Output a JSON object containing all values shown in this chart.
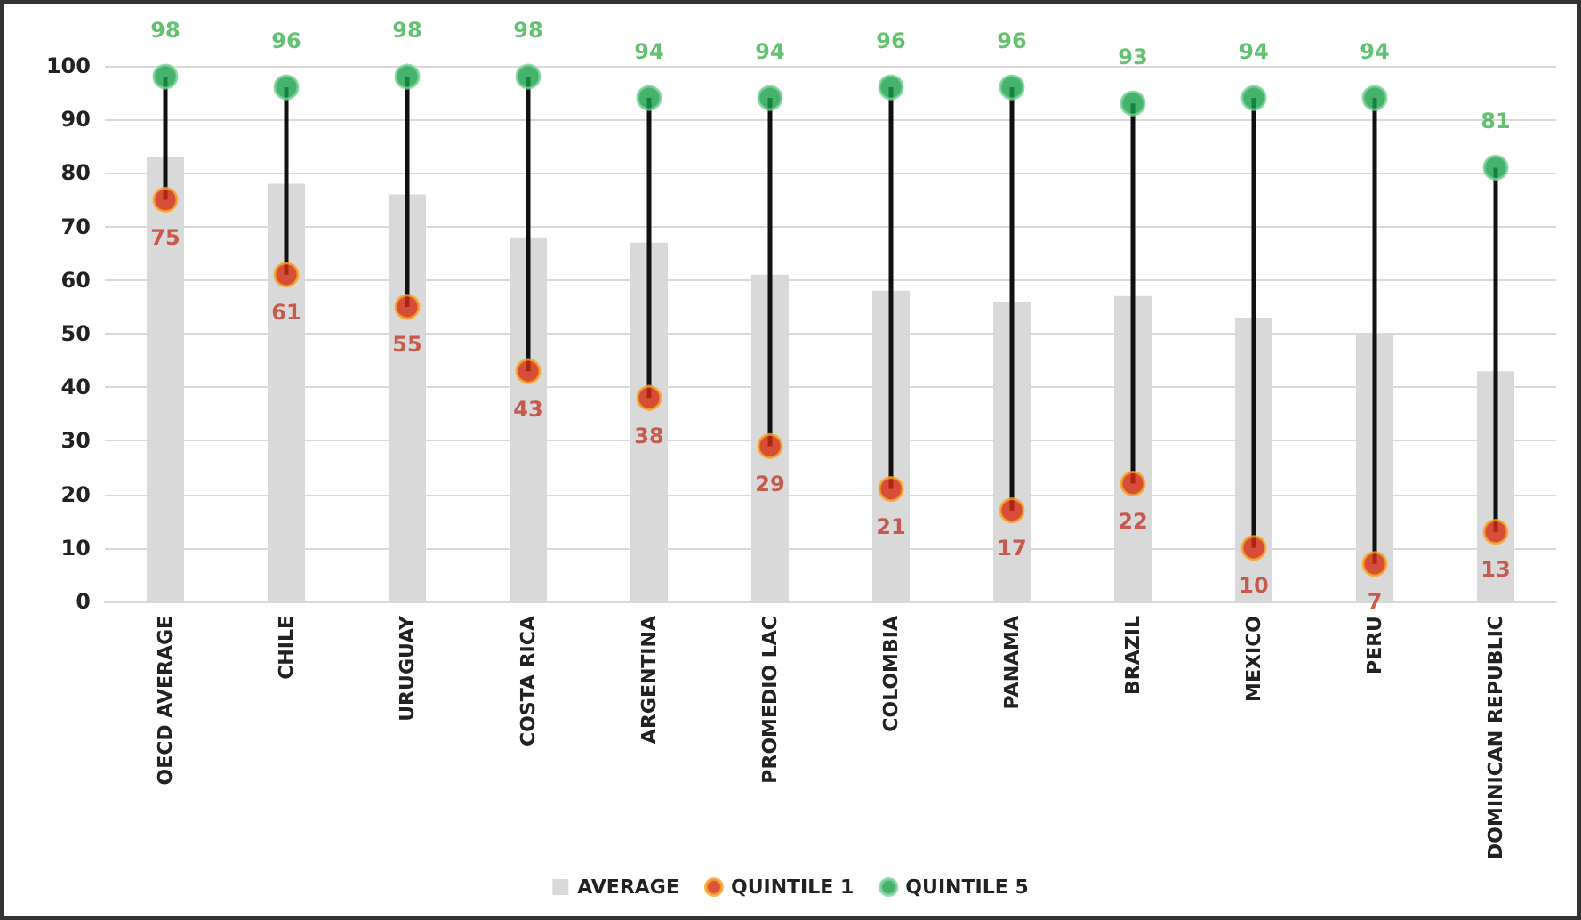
{
  "chart_data": {
    "type": "bar",
    "categories": [
      "OECD AVERAGE",
      "CHILE",
      "URUGUAY",
      "COSTA RICA",
      "ARGENTINA",
      "PROMEDIO LAC",
      "COLOMBIA",
      "PANAMA",
      "BRAZIL",
      "MEXICO",
      "PERU",
      "DOMINICAN REPUBLIC"
    ],
    "series": [
      {
        "name": "AVERAGE",
        "color": "#d9d9d9",
        "values": [
          83,
          78,
          76,
          68,
          67,
          61,
          58,
          56,
          57,
          53,
          50,
          43
        ]
      },
      {
        "name": "QUINTILE 1",
        "type": "scatter",
        "color": "#d42a0e",
        "values": [
          75,
          61,
          55,
          43,
          38,
          29,
          21,
          17,
          22,
          10,
          7,
          13
        ],
        "value_labels": [
          "75",
          "61",
          "55",
          "43",
          "38",
          "29",
          "21",
          "17",
          "22",
          "10",
          "7",
          "13"
        ]
      },
      {
        "name": "QUINTILE 5",
        "type": "scatter",
        "color": "#16a04a",
        "values": [
          98,
          96,
          98,
          98,
          94,
          94,
          96,
          96,
          93,
          94,
          94,
          81
        ],
        "value_labels": [
          "98",
          "96",
          "98",
          "98",
          "94",
          "94",
          "96",
          "96",
          "93",
          "94",
          "94",
          "81"
        ]
      }
    ],
    "ylim": [
      0,
      100
    ],
    "yticks": [
      0,
      10,
      20,
      30,
      40,
      50,
      60,
      70,
      80,
      90,
      100
    ],
    "grid": "y",
    "legend": "bottom",
    "marker": "circle"
  }
}
